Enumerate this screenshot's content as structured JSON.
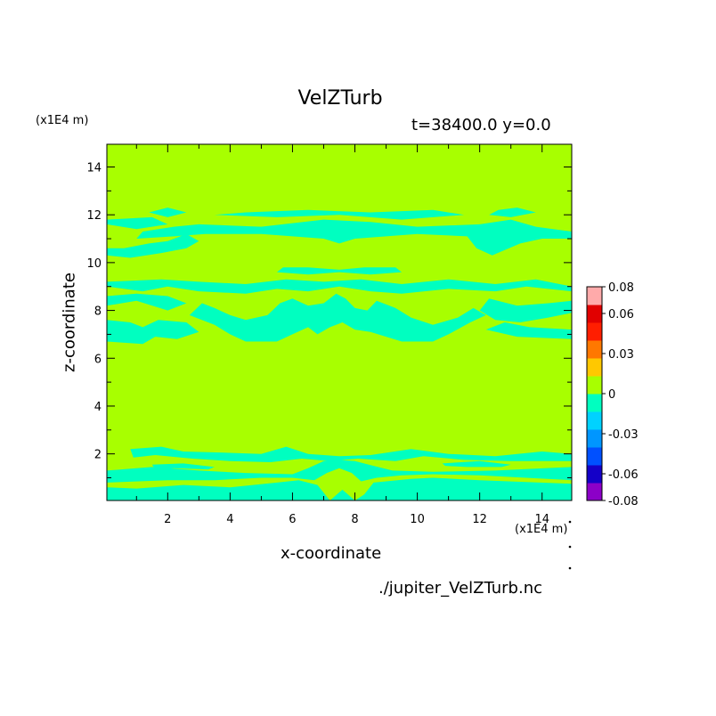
{
  "chart_data": {
    "type": "heatmap",
    "title": "VelZTurb",
    "subtitle": "t=38400.0 y=0.0",
    "xlabel": "x-coordinate",
    "ylabel": "z-coordinate",
    "x_unit": "(x1E4 m)",
    "y_unit": "(x1E4 m)",
    "xlim": [
      0.05,
      14.95
    ],
    "ylim": [
      0.05,
      14.95
    ],
    "xticks": [
      2,
      4,
      6,
      8,
      10,
      12,
      14
    ],
    "yticks": [
      2,
      4,
      6,
      8,
      10,
      12,
      14
    ],
    "background_value_color": "#a8ff00",
    "negative_value_color": "#00ffc0",
    "colorbar": {
      "colors": [
        "#8c00c8",
        "#1400c8",
        "#0050ff",
        "#0096ff",
        "#00d2ff",
        "#00ffc0",
        "#a8ff00",
        "#ffc800",
        "#ff7800",
        "#ff1e00",
        "#e10000",
        "#ffaaaa"
      ],
      "labels": [
        "0.08",
        "0.06",
        "0.03",
        "0",
        "-0.03",
        "-0.06",
        "-0.08"
      ],
      "label_values": [
        0.08,
        0.06,
        0.03,
        0,
        -0.03,
        -0.06,
        -0.08
      ],
      "min": -0.08,
      "max": 0.08
    },
    "negative_regions": [
      [
        [
          0.05,
          0.05
        ],
        [
          14.95,
          0.05
        ],
        [
          14.95,
          0.75
        ],
        [
          12,
          0.9
        ],
        [
          10.5,
          1.0
        ],
        [
          9.8,
          0.95
        ],
        [
          8.6,
          0.8
        ],
        [
          8.3,
          0.3
        ],
        [
          8.0,
          0.05
        ],
        [
          7.6,
          0.5
        ],
        [
          7.2,
          0.05
        ],
        [
          6.8,
          0.7
        ],
        [
          6.2,
          0.9
        ],
        [
          5.5,
          0.8
        ],
        [
          4.0,
          0.6
        ],
        [
          2.5,
          0.7
        ],
        [
          1.0,
          0.55
        ],
        [
          0.05,
          0.6
        ]
      ],
      [
        [
          0.05,
          1.3
        ],
        [
          1.5,
          1.45
        ],
        [
          3.0,
          1.3
        ],
        [
          4.5,
          1.2
        ],
        [
          6.0,
          1.15
        ],
        [
          6.5,
          1.4
        ],
        [
          7.0,
          1.7
        ],
        [
          7.5,
          1.75
        ],
        [
          8.0,
          1.7
        ],
        [
          8.6,
          1.5
        ],
        [
          9.2,
          1.3
        ],
        [
          10.5,
          1.25
        ],
        [
          12.5,
          1.3
        ],
        [
          14.95,
          1.45
        ],
        [
          14.95,
          0.9
        ],
        [
          12,
          1.1
        ],
        [
          10.5,
          1.15
        ],
        [
          9.5,
          1.1
        ],
        [
          8.7,
          1.0
        ],
        [
          8.2,
          0.85
        ],
        [
          7.9,
          1.2
        ],
        [
          7.5,
          1.4
        ],
        [
          7.1,
          1.2
        ],
        [
          6.7,
          0.9
        ],
        [
          6.0,
          1.0
        ],
        [
          5.0,
          1.0
        ],
        [
          3.5,
          0.9
        ],
        [
          2.0,
          0.9
        ],
        [
          0.05,
          0.8
        ]
      ],
      [
        [
          0.8,
          2.2
        ],
        [
          1.8,
          2.3
        ],
        [
          2.5,
          2.1
        ],
        [
          3.8,
          2.05
        ],
        [
          5,
          2.0
        ],
        [
          5.8,
          2.3
        ],
        [
          6.5,
          2.0
        ],
        [
          7.5,
          1.9
        ],
        [
          8.5,
          1.95
        ],
        [
          9.8,
          2.2
        ],
        [
          11,
          2.0
        ],
        [
          12.5,
          1.9
        ],
        [
          14,
          2.1
        ],
        [
          14.95,
          2.0
        ],
        [
          14.95,
          1.7
        ],
        [
          13,
          1.7
        ],
        [
          11.5,
          1.75
        ],
        [
          10.2,
          1.9
        ],
        [
          9.3,
          1.7
        ],
        [
          8.1,
          1.8
        ],
        [
          7.2,
          1.7
        ],
        [
          6.3,
          1.8
        ],
        [
          5.3,
          1.65
        ],
        [
          4.0,
          1.7
        ],
        [
          2.8,
          1.8
        ],
        [
          1.6,
          1.95
        ],
        [
          0.9,
          1.85
        ]
      ],
      [
        [
          1.5,
          1.55
        ],
        [
          2.5,
          1.6
        ],
        [
          3.5,
          1.45
        ],
        [
          3.3,
          1.35
        ],
        [
          2.2,
          1.4
        ],
        [
          1.6,
          1.35
        ]
      ],
      [
        [
          10.8,
          1.6
        ],
        [
          12,
          1.7
        ],
        [
          13,
          1.55
        ],
        [
          12.7,
          1.45
        ],
        [
          11.6,
          1.45
        ],
        [
          10.9,
          1.5
        ]
      ],
      [
        [
          0.05,
          6.7
        ],
        [
          1.2,
          6.6
        ],
        [
          1.6,
          6.9
        ],
        [
          2.3,
          6.8
        ],
        [
          3.0,
          7.1
        ],
        [
          2.6,
          7.5
        ],
        [
          1.7,
          7.6
        ],
        [
          1.2,
          7.3
        ],
        [
          0.8,
          7.5
        ],
        [
          0.05,
          7.6
        ]
      ],
      [
        [
          2.7,
          7.8
        ],
        [
          3.5,
          7.4
        ],
        [
          4.0,
          7.0
        ],
        [
          4.5,
          6.7
        ],
        [
          5.5,
          6.7
        ],
        [
          6.0,
          7.0
        ],
        [
          6.5,
          7.3
        ],
        [
          6.8,
          7.0
        ],
        [
          7.2,
          7.3
        ],
        [
          7.6,
          7.5
        ],
        [
          8.0,
          7.2
        ],
        [
          8.5,
          7.1
        ],
        [
          9.0,
          6.9
        ],
        [
          9.5,
          6.7
        ],
        [
          10.5,
          6.7
        ],
        [
          11.0,
          7.0
        ],
        [
          11.7,
          7.5
        ],
        [
          12.2,
          7.8
        ],
        [
          11.8,
          8.1
        ],
        [
          11.3,
          7.7
        ],
        [
          10.5,
          7.4
        ],
        [
          9.8,
          7.7
        ],
        [
          9.3,
          8.1
        ],
        [
          8.7,
          8.4
        ],
        [
          8.4,
          8.0
        ],
        [
          8.0,
          8.1
        ],
        [
          7.7,
          8.5
        ],
        [
          7.4,
          8.7
        ],
        [
          7.0,
          8.3
        ],
        [
          6.5,
          8.2
        ],
        [
          6.0,
          8.5
        ],
        [
          5.6,
          8.3
        ],
        [
          5.2,
          7.8
        ],
        [
          4.5,
          7.6
        ],
        [
          4.0,
          7.8
        ],
        [
          3.5,
          8.1
        ],
        [
          3.1,
          8.3
        ]
      ],
      [
        [
          0.05,
          8.2
        ],
        [
          1.0,
          8.4
        ],
        [
          2.0,
          8.0
        ],
        [
          2.6,
          8.3
        ],
        [
          2.0,
          8.6
        ],
        [
          1.0,
          8.7
        ],
        [
          0.05,
          8.6
        ]
      ],
      [
        [
          12.3,
          8.5
        ],
        [
          13.2,
          8.2
        ],
        [
          14.2,
          8.3
        ],
        [
          14.95,
          8.4
        ],
        [
          14.95,
          7.9
        ],
        [
          14.2,
          7.7
        ],
        [
          13.3,
          7.5
        ],
        [
          12.5,
          7.6
        ],
        [
          12.0,
          8.0
        ]
      ],
      [
        [
          12.2,
          7.2
        ],
        [
          13.2,
          6.9
        ],
        [
          14.95,
          6.8
        ],
        [
          14.95,
          7.2
        ],
        [
          13.6,
          7.3
        ],
        [
          12.8,
          7.5
        ]
      ],
      [
        [
          0.05,
          9.0
        ],
        [
          1.2,
          8.8
        ],
        [
          2.0,
          9.0
        ],
        [
          3.0,
          8.8
        ],
        [
          4.5,
          8.7
        ],
        [
          5.5,
          8.9
        ],
        [
          6.5,
          8.8
        ],
        [
          7.5,
          9.0
        ],
        [
          8.5,
          8.8
        ],
        [
          9.5,
          8.7
        ],
        [
          11,
          8.9
        ],
        [
          12.5,
          8.8
        ],
        [
          13.5,
          9.0
        ],
        [
          14.95,
          8.8
        ],
        [
          14.95,
          9.0
        ],
        [
          13.8,
          9.3
        ],
        [
          12.5,
          9.1
        ],
        [
          11.0,
          9.3
        ],
        [
          9.5,
          9.1
        ],
        [
          8.2,
          9.3
        ],
        [
          7.0,
          9.2
        ],
        [
          5.8,
          9.3
        ],
        [
          4.5,
          9.1
        ],
        [
          3.0,
          9.2
        ],
        [
          1.8,
          9.3
        ],
        [
          0.05,
          9.2
        ]
      ],
      [
        [
          5.5,
          9.6
        ],
        [
          6.5,
          9.5
        ],
        [
          7.5,
          9.6
        ],
        [
          8.5,
          9.5
        ],
        [
          9.5,
          9.6
        ],
        [
          9.3,
          9.8
        ],
        [
          8.3,
          9.8
        ],
        [
          7.5,
          9.7
        ],
        [
          6.5,
          9.8
        ],
        [
          5.7,
          9.8
        ]
      ],
      [
        [
          0.05,
          10.3
        ],
        [
          0.8,
          10.2
        ],
        [
          1.8,
          10.4
        ],
        [
          2.6,
          10.6
        ],
        [
          3.0,
          10.9
        ],
        [
          2.6,
          11.2
        ],
        [
          2.0,
          10.9
        ],
        [
          1.4,
          10.8
        ],
        [
          0.6,
          10.6
        ],
        [
          0.05,
          10.6
        ]
      ],
      [
        [
          1.2,
          11.3
        ],
        [
          2.2,
          11.5
        ],
        [
          3.0,
          11.6
        ],
        [
          5.0,
          11.5
        ],
        [
          7.0,
          11.8
        ],
        [
          8.5,
          11.7
        ],
        [
          10.0,
          11.5
        ],
        [
          12.0,
          11.6
        ],
        [
          13.0,
          11.8
        ],
        [
          13.8,
          11.5
        ],
        [
          14.95,
          11.3
        ],
        [
          14.95,
          11.0
        ],
        [
          14.0,
          11.0
        ],
        [
          13.3,
          10.8
        ],
        [
          12.4,
          10.3
        ],
        [
          11.9,
          10.6
        ],
        [
          11.6,
          11.1
        ],
        [
          10.0,
          11.2
        ],
        [
          8.0,
          11.0
        ],
        [
          7.5,
          10.8
        ],
        [
          7.0,
          11.0
        ],
        [
          5.0,
          11.2
        ],
        [
          3.2,
          11.2
        ],
        [
          2.2,
          11.1
        ],
        [
          1.0,
          11.0
        ]
      ],
      [
        [
          0.05,
          11.6
        ],
        [
          1.0,
          11.4
        ],
        [
          2.0,
          11.6
        ],
        [
          1.5,
          11.9
        ],
        [
          0.05,
          11.8
        ]
      ],
      [
        [
          3.5,
          12.0
        ],
        [
          5.5,
          11.9
        ],
        [
          7.5,
          12.0
        ],
        [
          9.5,
          11.8
        ],
        [
          11.5,
          12.0
        ],
        [
          10.5,
          12.2
        ],
        [
          8.5,
          12.1
        ],
        [
          6.5,
          12.2
        ],
        [
          4.5,
          12.1
        ]
      ],
      [
        [
          12.3,
          12.0
        ],
        [
          13.0,
          11.9
        ],
        [
          13.8,
          12.1
        ],
        [
          13.2,
          12.3
        ],
        [
          12.6,
          12.2
        ]
      ],
      [
        [
          1.4,
          12.1
        ],
        [
          2.0,
          11.9
        ],
        [
          2.6,
          12.1
        ],
        [
          2.0,
          12.3
        ]
      ]
    ]
  }
}
